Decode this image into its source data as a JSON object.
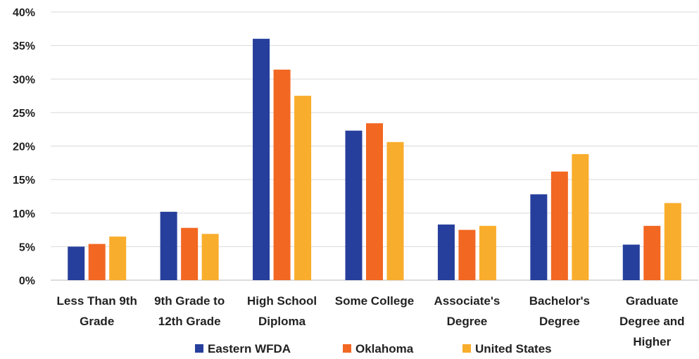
{
  "chart_data": {
    "type": "bar",
    "title": "",
    "xlabel": "",
    "ylabel": "",
    "ylim": [
      0,
      40
    ],
    "yticks": [
      "0%",
      "5%",
      "10%",
      "15%",
      "20%",
      "25%",
      "30%",
      "35%",
      "40%"
    ],
    "grid": true,
    "legend_position": "bottom",
    "categories": [
      [
        "Less Than 9th",
        "Grade"
      ],
      [
        "9th Grade to",
        "12th Grade"
      ],
      [
        "High School",
        "Diploma"
      ],
      [
        "Some College"
      ],
      [
        "Associate's",
        "Degree"
      ],
      [
        "Bachelor's",
        "Degree"
      ],
      [
        "Graduate",
        "Degree and",
        "Higher"
      ]
    ],
    "series": [
      {
        "name": "Eastern WFDA",
        "color": "#263f9c",
        "values": [
          5.0,
          10.2,
          36.0,
          22.3,
          8.3,
          12.8,
          5.3
        ]
      },
      {
        "name": "Oklahoma",
        "color": "#f26722",
        "values": [
          5.4,
          7.8,
          31.4,
          23.4,
          7.5,
          16.2,
          8.1
        ]
      },
      {
        "name": "United States",
        "color": "#f9ad2c",
        "values": [
          6.5,
          6.9,
          27.5,
          20.6,
          8.1,
          18.8,
          11.5
        ]
      }
    ]
  }
}
